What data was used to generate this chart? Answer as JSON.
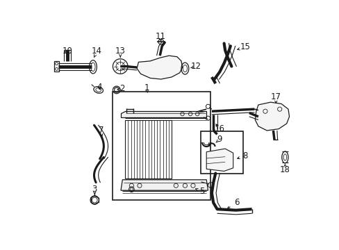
{
  "bg_color": "#ffffff",
  "line_color": "#1a1a1a",
  "fig_w": 4.89,
  "fig_h": 3.6,
  "dpi": 100,
  "label_fontsize": 8.5
}
